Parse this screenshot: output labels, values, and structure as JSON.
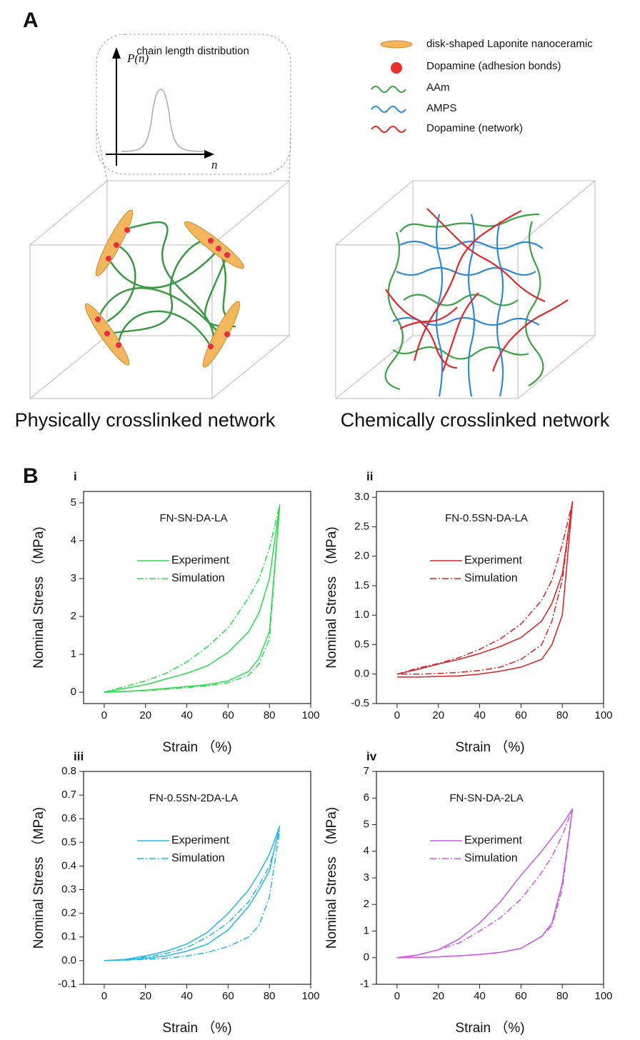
{
  "panel_a": {
    "label": "A",
    "inset_title": "chain length distribution",
    "inset_y": "P(n)",
    "inset_x": "n",
    "legend": [
      "disk-shaped Laponite nanoceramic",
      "Dopamine (adhesion bonds)",
      "AAm",
      "AMPS",
      "Dopamine (network)"
    ],
    "captions": [
      "Physically crosslinked network",
      "Chemically crosslinked network"
    ]
  },
  "panel_b": {
    "label": "B"
  },
  "chart_data": [
    {
      "type": "line",
      "panel": "i",
      "title": "FN-SN-DA-LA",
      "x_label": "Strain （%)",
      "y_label": "Nominal Stress （MPa)",
      "x": [
        0,
        10,
        20,
        30,
        40,
        50,
        60,
        70,
        75,
        80,
        85,
        80,
        75,
        70,
        60,
        50,
        40,
        30,
        20,
        10,
        0
      ],
      "xlim": [
        -10,
        100
      ],
      "xticks": [
        0,
        20,
        40,
        60,
        80,
        100
      ],
      "ylim": [
        -0.3,
        5.3
      ],
      "yticks": [
        0,
        1,
        2,
        3,
        4,
        5
      ],
      "series": [
        {
          "name": "Experiment",
          "color": "#27dd4a",
          "style": "solid",
          "values": [
            0,
            0.1,
            0.2,
            0.35,
            0.5,
            0.7,
            1.05,
            1.6,
            2.1,
            3.0,
            4.95,
            1.6,
            0.9,
            0.55,
            0.3,
            0.2,
            0.15,
            0.1,
            0.05,
            0.02,
            0
          ]
        },
        {
          "name": "Simulation",
          "color": "#27dd4a",
          "style": "dashdot",
          "values": [
            0,
            0.15,
            0.3,
            0.5,
            0.8,
            1.2,
            1.7,
            2.5,
            3.0,
            3.8,
            4.95,
            1.4,
            0.75,
            0.45,
            0.25,
            0.17,
            0.12,
            0.08,
            0.04,
            0.02,
            0
          ]
        }
      ]
    },
    {
      "type": "line",
      "panel": "ii",
      "title": "FN-0.5SN-DA-LA",
      "x_label": "Strain （%)",
      "y_label": "Nominal Stress （MPa)",
      "x": [
        0,
        10,
        20,
        30,
        40,
        50,
        60,
        70,
        75,
        80,
        85,
        80,
        75,
        70,
        60,
        50,
        40,
        30,
        20,
        10,
        0
      ],
      "xlim": [
        -10,
        100
      ],
      "xticks": [
        0,
        20,
        40,
        60,
        80,
        100
      ],
      "ylim": [
        -0.5,
        3.1
      ],
      "yticks": [
        -0.5,
        {
          "value": 0,
          "label": "0.0"
        },
        0.5,
        {
          "value": 1,
          "label": "1.0"
        },
        1.5,
        {
          "value": 2,
          "label": "2.0"
        },
        2.5,
        {
          "value": 3,
          "label": "3.0"
        }
      ],
      "series": [
        {
          "name": "Experiment",
          "color": "#dd2020",
          "style": "solid",
          "values": [
            0,
            0.08,
            0.17,
            0.25,
            0.35,
            0.47,
            0.62,
            0.9,
            1.2,
            1.7,
            2.93,
            1.0,
            0.5,
            0.25,
            0.12,
            0.05,
            0,
            -0.03,
            -0.04,
            -0.05,
            -0.05
          ]
        },
        {
          "name": "Simulation",
          "color": "#dd2020",
          "style": "dashdot",
          "values": [
            0,
            0.1,
            0.18,
            0.28,
            0.42,
            0.6,
            0.85,
            1.25,
            1.6,
            2.2,
            2.93,
            1.6,
            0.9,
            0.5,
            0.25,
            0.12,
            0.06,
            0.03,
            0.01,
            0,
            0
          ]
        }
      ]
    },
    {
      "type": "line",
      "panel": "iii",
      "title": "FN-0.5SN-2DA-LA",
      "x_label": "Strain （%)",
      "y_label": "Nominal Stress （MPa)",
      "x": [
        0,
        10,
        20,
        30,
        40,
        50,
        60,
        70,
        75,
        80,
        85,
        80,
        75,
        70,
        60,
        50,
        40,
        30,
        20,
        10,
        0
      ],
      "xlim": [
        -10,
        100
      ],
      "xticks": [
        0,
        20,
        40,
        60,
        80,
        100
      ],
      "ylim": [
        -0.1,
        0.8
      ],
      "yticks": [
        -0.1,
        {
          "value": 0,
          "label": "0.0"
        },
        0.1,
        0.2,
        0.3,
        0.4,
        0.5,
        0.6,
        0.7,
        0.8
      ],
      "series": [
        {
          "name": "Experiment",
          "color": "#22b8e6",
          "style": "solid",
          "values": [
            0,
            0.005,
            0.02,
            0.04,
            0.07,
            0.12,
            0.2,
            0.3,
            0.37,
            0.45,
            0.57,
            0.38,
            0.3,
            0.23,
            0.13,
            0.07,
            0.04,
            0.02,
            0.01,
            0.003,
            0
          ]
        },
        {
          "name": "Simulation",
          "color": "#22b8e6",
          "style": "dashdot",
          "values": [
            0,
            0.005,
            0.015,
            0.03,
            0.055,
            0.1,
            0.16,
            0.25,
            0.32,
            0.4,
            0.55,
            0.27,
            0.15,
            0.1,
            0.06,
            0.035,
            0.02,
            0.01,
            0.005,
            0.002,
            0
          ]
        }
      ]
    },
    {
      "type": "line",
      "panel": "iv",
      "title": "FN-SN-DA-2LA",
      "x_label": "Strain （%)",
      "y_label": "Nominal Stress （MPa)",
      "x": [
        0,
        10,
        20,
        30,
        40,
        50,
        60,
        70,
        75,
        80,
        85,
        80,
        75,
        70,
        60,
        50,
        40,
        30,
        20,
        10,
        0
      ],
      "xlim": [
        -10,
        100
      ],
      "xticks": [
        0,
        20,
        40,
        60,
        80,
        100
      ],
      "ylim": [
        -1,
        7
      ],
      "yticks": [
        -1,
        0,
        1,
        2,
        3,
        4,
        5,
        6,
        7
      ],
      "series": [
        {
          "name": "Experiment",
          "color": "#cc55ee",
          "style": "solid",
          "values": [
            0,
            0.1,
            0.3,
            0.7,
            1.3,
            2.1,
            3.1,
            4.0,
            4.5,
            5.0,
            5.6,
            2.8,
            1.3,
            0.8,
            0.35,
            0.2,
            0.12,
            0.07,
            0.03,
            0.01,
            0
          ]
        },
        {
          "name": "Simulation",
          "color": "#cc55ee",
          "style": "dashdot",
          "values": [
            0,
            0.1,
            0.3,
            0.55,
            1.0,
            1.5,
            2.2,
            3.2,
            3.8,
            4.6,
            5.6,
            2.6,
            1.2,
            0.8,
            0.35,
            0.2,
            0.12,
            0.07,
            0.03,
            0.01,
            0
          ]
        }
      ]
    }
  ]
}
